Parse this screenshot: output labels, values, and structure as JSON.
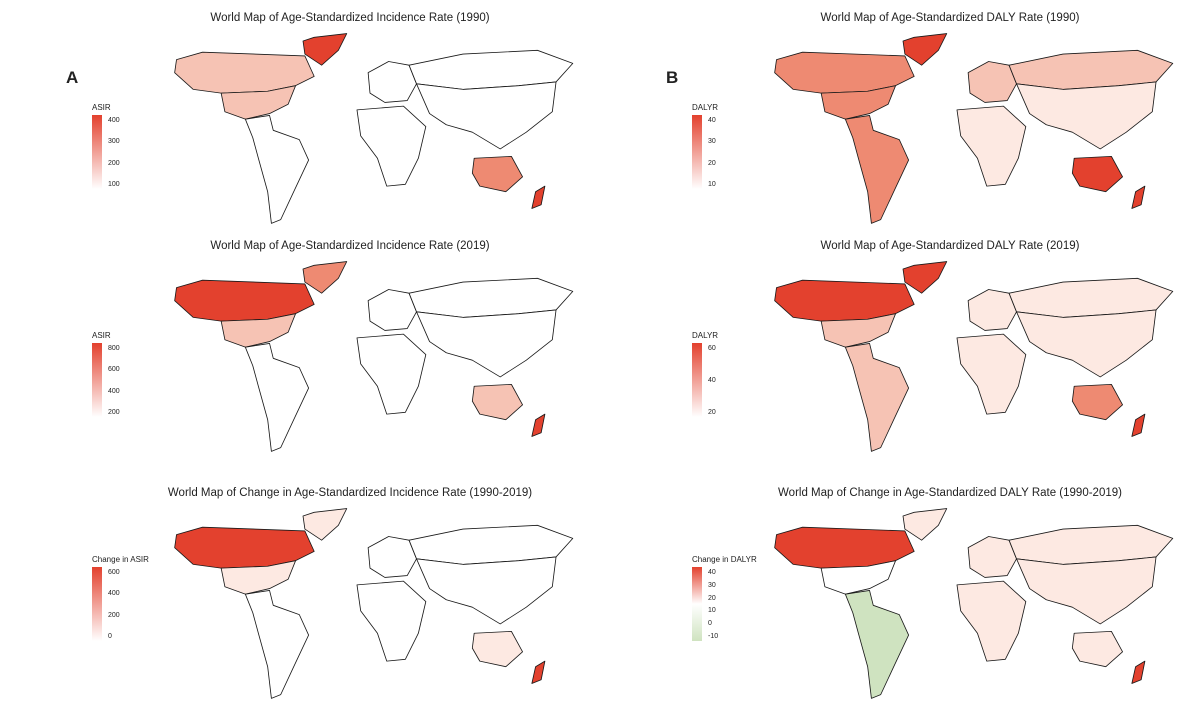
{
  "labels": {
    "a": "A",
    "b": "B"
  },
  "colors": {
    "high": "#e3412e",
    "mid": "#ee8a72",
    "light": "#f6c3b4",
    "pale": "#fde9e2",
    "none": "#ffffff",
    "neg": "#cfe3c0"
  },
  "panels": [
    {
      "title": "World Map of Age-Standardized Incidence Rate (1990)",
      "legend_title": "ASIR",
      "ticks": [
        "400",
        "300",
        "200",
        "100"
      ],
      "gradient": [
        "#e3412e",
        "#ffffff"
      ],
      "fills": {
        "greenland": "high",
        "north_america": "light",
        "usa": "light",
        "latin_america": "none",
        "europe": "none",
        "russia": "none",
        "africa": "none",
        "asia": "none",
        "australia": "mid",
        "nz": "high"
      }
    },
    {
      "title": "World Map of Age-Standardized DALY Rate (1990)",
      "legend_title": "DALYR",
      "ticks": [
        "40",
        "30",
        "20",
        "10"
      ],
      "gradient": [
        "#e3412e",
        "#ffffff"
      ],
      "fills": {
        "greenland": "high",
        "north_america": "mid",
        "usa": "mid",
        "latin_america": "mid",
        "europe": "light",
        "russia": "light",
        "africa": "pale",
        "asia": "pale",
        "australia": "high",
        "nz": "high"
      }
    },
    {
      "title": "World Map of Age-Standardized Incidence Rate (2019)",
      "legend_title": "ASIR",
      "ticks": [
        "800",
        "600",
        "400",
        "200"
      ],
      "gradient": [
        "#e3412e",
        "#ffffff"
      ],
      "fills": {
        "greenland": "mid",
        "north_america": "high",
        "usa": "light",
        "latin_america": "none",
        "europe": "none",
        "russia": "none",
        "africa": "none",
        "asia": "none",
        "australia": "light",
        "nz": "high"
      }
    },
    {
      "title": "World Map of Age-Standardized DALY Rate (2019)",
      "legend_title": "DALYR",
      "ticks": [
        "60",
        "40",
        "20"
      ],
      "gradient": [
        "#e3412e",
        "#ffffff"
      ],
      "fills": {
        "greenland": "high",
        "north_america": "high",
        "usa": "light",
        "latin_america": "light",
        "europe": "pale",
        "russia": "pale",
        "africa": "pale",
        "asia": "pale",
        "australia": "mid",
        "nz": "high"
      }
    },
    {
      "title": "World Map of Change in Age-Standardized Incidence Rate (1990-2019)",
      "legend_title": "Change in ASIR",
      "ticks": [
        "600",
        "400",
        "200",
        "0"
      ],
      "gradient": [
        "#e3412e",
        "#ffffff"
      ],
      "fills": {
        "greenland": "pale",
        "north_america": "high",
        "usa": "pale",
        "latin_america": "none",
        "europe": "none",
        "russia": "none",
        "africa": "none",
        "asia": "none",
        "australia": "pale",
        "nz": "high"
      }
    },
    {
      "title": "World Map of Change in Age-Standardized DALY Rate (1990-2019)",
      "legend_title": "Change in DALYR",
      "ticks": [
        "40",
        "30",
        "20",
        "10",
        "0",
        "-10"
      ],
      "gradient": [
        "#e3412e",
        "#ffffff",
        "#cfe3c0"
      ],
      "fills": {
        "greenland": "pale",
        "north_america": "high",
        "usa": "none",
        "latin_america": "neg",
        "europe": "pale",
        "russia": "pale",
        "africa": "pale",
        "asia": "pale",
        "australia": "pale",
        "nz": "high"
      }
    }
  ]
}
